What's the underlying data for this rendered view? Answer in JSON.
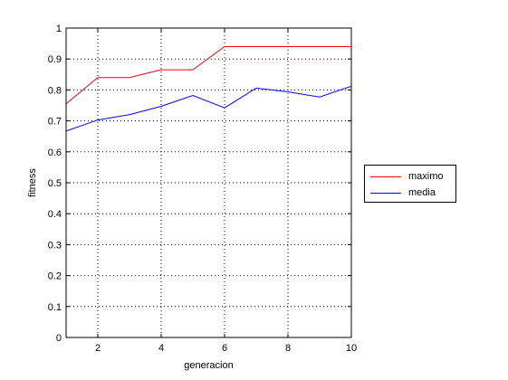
{
  "chart_data": {
    "type": "line",
    "title": "",
    "xlabel": "generacion",
    "ylabel": "fitness",
    "xlim": [
      1,
      10
    ],
    "ylim": [
      0,
      1
    ],
    "grid": true,
    "legend_position": "right",
    "x": [
      1,
      2,
      3,
      4,
      5,
      6,
      7,
      8,
      9,
      10
    ],
    "series": [
      {
        "name": "maximo",
        "color": "#ff0000",
        "values": [
          0.755,
          0.84,
          0.84,
          0.865,
          0.865,
          0.94,
          0.94,
          0.94,
          0.94,
          0.94
        ]
      },
      {
        "name": "media",
        "color": "#0000ff",
        "values": [
          0.667,
          0.703,
          0.72,
          0.747,
          0.782,
          0.742,
          0.806,
          0.794,
          0.777,
          0.812
        ]
      }
    ],
    "xticks": [
      "2",
      "4",
      "6",
      "8",
      "10"
    ],
    "xtick_values": [
      2,
      4,
      6,
      8,
      10
    ],
    "yticks": [
      "0",
      "0.1",
      "0.2",
      "0.3",
      "0.4",
      "0.5",
      "0.6",
      "0.7",
      "0.8",
      "0.9",
      "1"
    ],
    "ytick_values": [
      0,
      0.1,
      0.2,
      0.3,
      0.4,
      0.5,
      0.6,
      0.7,
      0.8,
      0.9,
      1.0
    ]
  }
}
